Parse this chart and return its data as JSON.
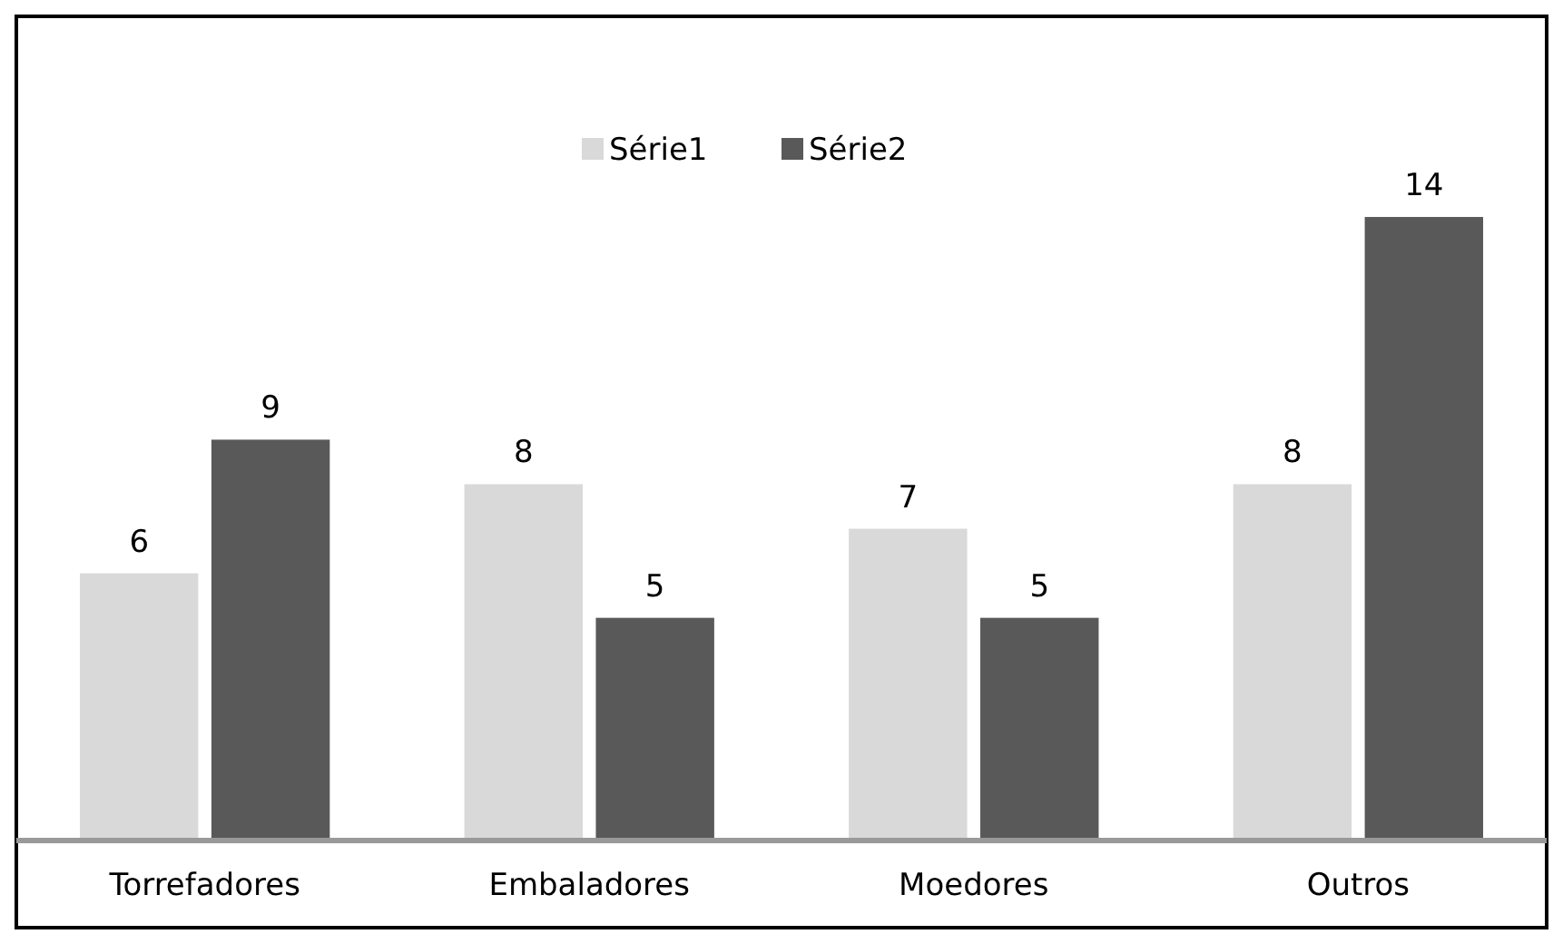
{
  "chart_data": {
    "type": "bar",
    "categories": [
      "Torrefadores",
      "Embaladores",
      "Moedores",
      "Outros"
    ],
    "series": [
      {
        "name": "Série1",
        "color": "#d9d9d9",
        "values": [
          6,
          8,
          7,
          8
        ]
      },
      {
        "name": "Série2",
        "color": "#595959",
        "values": [
          9,
          5,
          5,
          14
        ]
      }
    ],
    "data_labels": true,
    "legend": "top",
    "relative": false
  }
}
